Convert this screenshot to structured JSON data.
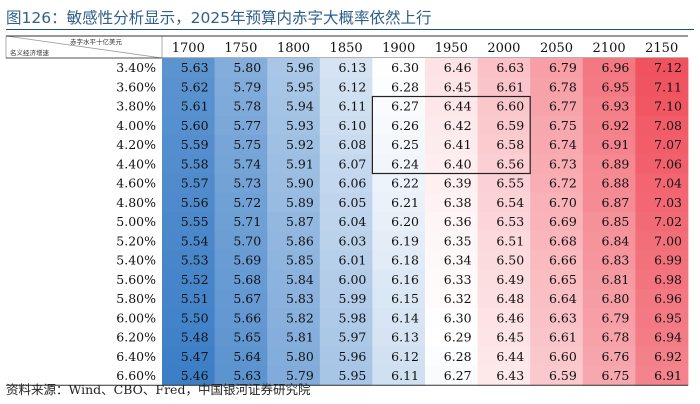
{
  "title": "图126：敏感性分析显示，2025年预算内赤字大概率依然上行",
  "source": "资料来源：Wind、CBO、Fred，中国银河证券研究院",
  "corner": {
    "col_axis": "赤字水平十亿美元",
    "row_axis": "名义经济增速"
  },
  "chart_data": {
    "type": "heatmap",
    "columns": [
      "1700",
      "1750",
      "1800",
      "1850",
      "1900",
      "1950",
      "2000",
      "2050",
      "2100",
      "2150"
    ],
    "rows": [
      "3.40%",
      "3.60%",
      "3.80%",
      "4.00%",
      "4.20%",
      "4.40%",
      "4.60%",
      "4.80%",
      "5.00%",
      "5.20%",
      "5.40%",
      "5.60%",
      "5.80%",
      "6.00%",
      "6.20%",
      "6.40%",
      "6.60%"
    ],
    "values": [
      [
        5.63,
        5.8,
        5.96,
        6.13,
        6.3,
        6.46,
        6.63,
        6.79,
        6.96,
        7.12
      ],
      [
        5.62,
        5.79,
        5.95,
        6.12,
        6.28,
        6.45,
        6.61,
        6.78,
        6.95,
        7.11
      ],
      [
        5.61,
        5.78,
        5.94,
        6.11,
        6.27,
        6.44,
        6.6,
        6.77,
        6.93,
        7.1
      ],
      [
        5.6,
        5.77,
        5.93,
        6.1,
        6.26,
        6.42,
        6.59,
        6.75,
        6.92,
        7.08
      ],
      [
        5.59,
        5.75,
        5.92,
        6.08,
        6.25,
        6.41,
        6.58,
        6.74,
        6.91,
        7.07
      ],
      [
        5.58,
        5.74,
        5.91,
        6.07,
        6.24,
        6.4,
        6.56,
        6.73,
        6.89,
        7.06
      ],
      [
        5.57,
        5.73,
        5.9,
        6.06,
        6.22,
        6.39,
        6.55,
        6.72,
        6.88,
        7.04
      ],
      [
        5.56,
        5.72,
        5.89,
        6.05,
        6.21,
        6.38,
        6.54,
        6.7,
        6.87,
        7.03
      ],
      [
        5.55,
        5.71,
        5.87,
        6.04,
        6.2,
        6.36,
        6.53,
        6.69,
        6.85,
        7.02
      ],
      [
        5.54,
        5.7,
        5.86,
        6.03,
        6.19,
        6.35,
        6.51,
        6.68,
        6.84,
        7.0
      ],
      [
        5.53,
        5.69,
        5.85,
        6.01,
        6.18,
        6.34,
        6.5,
        6.66,
        6.83,
        6.99
      ],
      [
        5.52,
        5.68,
        5.84,
        6.0,
        6.16,
        6.33,
        6.49,
        6.65,
        6.81,
        6.98
      ],
      [
        5.51,
        5.67,
        5.83,
        5.99,
        6.15,
        6.32,
        6.48,
        6.64,
        6.8,
        6.96
      ],
      [
        5.5,
        5.66,
        5.82,
        5.98,
        6.14,
        6.3,
        6.46,
        6.63,
        6.79,
        6.95
      ],
      [
        5.48,
        5.65,
        5.81,
        5.97,
        6.13,
        6.29,
        6.45,
        6.61,
        6.78,
        6.94
      ],
      [
        5.47,
        5.64,
        5.8,
        5.96,
        6.12,
        6.28,
        6.44,
        6.6,
        6.76,
        6.92
      ],
      [
        5.46,
        5.63,
        5.79,
        5.95,
        6.11,
        6.27,
        6.43,
        6.59,
        6.75,
        6.91
      ]
    ],
    "highlight": {
      "rows": [
        "3.80%",
        "4.40%"
      ],
      "columns": [
        "1900",
        "2000"
      ]
    },
    "colors": {
      "low": "#3d7fc7",
      "mid": "#ffffff",
      "high": "#f0525f"
    }
  }
}
